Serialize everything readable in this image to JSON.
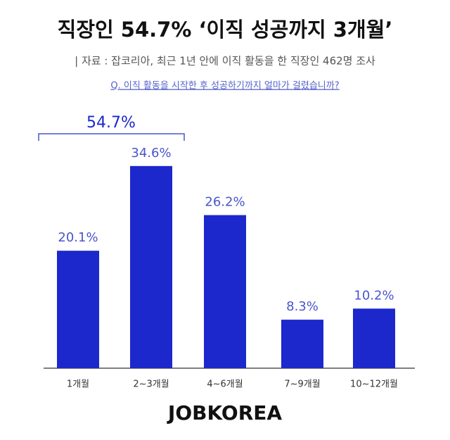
{
  "chart_data": {
    "type": "bar",
    "title": "직장인 54.7% ‘이직 성공까지 3개월’",
    "subtitle": "| 자료 : 잡코리아,  최근 1년 안에 이직 활동을 한 직장인 462명 조사",
    "question": "Q. 이직 활동을 시작한 후 성공하기까지 얼마가 걸렸습니까?",
    "annotation": "54.7%",
    "categories": [
      "1개월",
      "2~3개월",
      "4~6개월",
      "7~9개월",
      "10~12개월"
    ],
    "values": [
      20.1,
      34.6,
      26.2,
      8.3,
      10.2
    ],
    "value_labels": [
      "20.1%",
      "34.6%",
      "26.2%",
      "8.3%",
      "10.2%"
    ],
    "color": "#1c27cc",
    "logo": "JOBKOREA"
  }
}
